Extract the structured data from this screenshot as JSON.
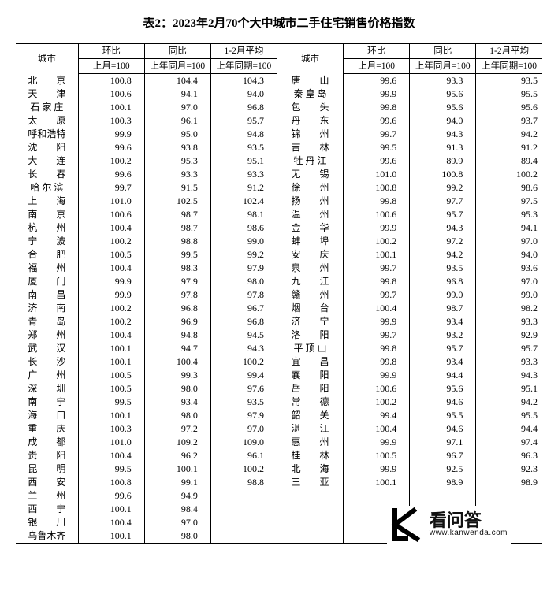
{
  "title": "表2：2023年2月70个大中城市二手住宅销售价格指数",
  "headers": {
    "city": "城市",
    "mom": "环比",
    "yoy": "同比",
    "avg": "1-2月平均",
    "mom_sub": "上月=100",
    "yoy_sub": "上年同月=100",
    "avg_sub": "上年同期=100"
  },
  "columns": {
    "widths_left": {
      "city": 64,
      "val": 68
    },
    "widths_right": {
      "city": 68,
      "val": 68
    }
  },
  "styling": {
    "background_color": "#ffffff",
    "text_color": "#000000",
    "border_color": "#000000",
    "title_fontsize": 15,
    "body_fontsize": 12,
    "font_family": "SimSun"
  },
  "left": [
    {
      "c": "北　　京",
      "v": [
        "100.8",
        "104.4",
        "104.3"
      ]
    },
    {
      "c": "天　　津",
      "v": [
        "100.6",
        "94.1",
        "94.0"
      ]
    },
    {
      "c": "石 家 庄",
      "v": [
        "100.1",
        "97.0",
        "96.8"
      ]
    },
    {
      "c": "太　　原",
      "v": [
        "100.3",
        "96.1",
        "95.7"
      ]
    },
    {
      "c": "呼和浩特",
      "v": [
        "99.9",
        "95.0",
        "94.8"
      ]
    },
    {
      "c": "沈　　阳",
      "v": [
        "99.6",
        "93.8",
        "93.5"
      ]
    },
    {
      "c": "大　　连",
      "v": [
        "100.2",
        "95.3",
        "95.1"
      ]
    },
    {
      "c": "长　　春",
      "v": [
        "99.6",
        "93.3",
        "93.3"
      ]
    },
    {
      "c": "哈 尔 滨",
      "v": [
        "99.7",
        "91.5",
        "91.2"
      ]
    },
    {
      "c": "上　　海",
      "v": [
        "101.0",
        "102.5",
        "102.4"
      ]
    },
    {
      "c": "南　　京",
      "v": [
        "100.6",
        "98.7",
        "98.1"
      ]
    },
    {
      "c": "杭　　州",
      "v": [
        "100.4",
        "98.7",
        "98.6"
      ]
    },
    {
      "c": "宁　　波",
      "v": [
        "100.2",
        "98.8",
        "99.0"
      ]
    },
    {
      "c": "合　　肥",
      "v": [
        "100.5",
        "99.5",
        "99.2"
      ]
    },
    {
      "c": "福　　州",
      "v": [
        "100.4",
        "98.3",
        "97.9"
      ]
    },
    {
      "c": "厦　　门",
      "v": [
        "99.9",
        "97.9",
        "98.0"
      ]
    },
    {
      "c": "南　　昌",
      "v": [
        "99.9",
        "97.8",
        "97.8"
      ]
    },
    {
      "c": "济　　南",
      "v": [
        "100.2",
        "96.8",
        "96.7"
      ]
    },
    {
      "c": "青　　岛",
      "v": [
        "100.2",
        "96.9",
        "96.8"
      ]
    },
    {
      "c": "郑　　州",
      "v": [
        "100.4",
        "94.8",
        "94.5"
      ]
    },
    {
      "c": "武　　汉",
      "v": [
        "100.1",
        "94.7",
        "94.3"
      ]
    },
    {
      "c": "长　　沙",
      "v": [
        "100.1",
        "100.4",
        "100.2"
      ]
    },
    {
      "c": "广　　州",
      "v": [
        "100.5",
        "99.3",
        "99.4"
      ]
    },
    {
      "c": "深　　圳",
      "v": [
        "100.5",
        "98.0",
        "97.6"
      ]
    },
    {
      "c": "南　　宁",
      "v": [
        "99.5",
        "93.4",
        "93.5"
      ]
    },
    {
      "c": "海　　口",
      "v": [
        "100.1",
        "98.0",
        "97.9"
      ]
    },
    {
      "c": "重　　庆",
      "v": [
        "100.3",
        "97.2",
        "97.0"
      ]
    },
    {
      "c": "成　　都",
      "v": [
        "101.0",
        "109.2",
        "109.0"
      ]
    },
    {
      "c": "贵　　阳",
      "v": [
        "100.4",
        "96.2",
        "96.1"
      ]
    },
    {
      "c": "昆　　明",
      "v": [
        "99.5",
        "100.1",
        "100.2"
      ]
    },
    {
      "c": "西　　安",
      "v": [
        "100.8",
        "99.1",
        "98.8"
      ]
    },
    {
      "c": "兰　　州",
      "v": [
        "99.6",
        "94.9",
        ""
      ]
    },
    {
      "c": "西　　宁",
      "v": [
        "100.1",
        "98.4",
        ""
      ]
    },
    {
      "c": "银　　川",
      "v": [
        "100.4",
        "97.0",
        ""
      ]
    },
    {
      "c": "乌鲁木齐",
      "v": [
        "100.1",
        "98.0",
        ""
      ]
    }
  ],
  "right": [
    {
      "c": "唐　　山",
      "v": [
        "99.6",
        "93.3",
        "93.5"
      ]
    },
    {
      "c": "秦 皇 岛",
      "v": [
        "99.9",
        "95.6",
        "95.5"
      ]
    },
    {
      "c": "包　　头",
      "v": [
        "99.8",
        "95.6",
        "95.6"
      ]
    },
    {
      "c": "丹　　东",
      "v": [
        "99.6",
        "94.0",
        "93.7"
      ]
    },
    {
      "c": "锦　　州",
      "v": [
        "99.7",
        "94.3",
        "94.2"
      ]
    },
    {
      "c": "吉　　林",
      "v": [
        "99.5",
        "91.3",
        "91.2"
      ]
    },
    {
      "c": "牡 丹 江",
      "v": [
        "99.6",
        "89.9",
        "89.4"
      ]
    },
    {
      "c": "无　　锡",
      "v": [
        "101.0",
        "100.8",
        "100.2"
      ]
    },
    {
      "c": "徐　　州",
      "v": [
        "100.8",
        "99.2",
        "98.6"
      ]
    },
    {
      "c": "扬　　州",
      "v": [
        "99.8",
        "97.7",
        "97.5"
      ]
    },
    {
      "c": "温　　州",
      "v": [
        "100.6",
        "95.7",
        "95.3"
      ]
    },
    {
      "c": "金　　华",
      "v": [
        "99.9",
        "94.3",
        "94.1"
      ]
    },
    {
      "c": "蚌　　埠",
      "v": [
        "100.2",
        "97.2",
        "97.0"
      ]
    },
    {
      "c": "安　　庆",
      "v": [
        "100.1",
        "94.2",
        "94.0"
      ]
    },
    {
      "c": "泉　　州",
      "v": [
        "99.7",
        "93.5",
        "93.6"
      ]
    },
    {
      "c": "九　　江",
      "v": [
        "99.8",
        "96.8",
        "97.0"
      ]
    },
    {
      "c": "赣　　州",
      "v": [
        "99.7",
        "99.0",
        "99.0"
      ]
    },
    {
      "c": "烟　　台",
      "v": [
        "100.4",
        "98.7",
        "98.2"
      ]
    },
    {
      "c": "济　　宁",
      "v": [
        "99.9",
        "93.4",
        "93.3"
      ]
    },
    {
      "c": "洛　　阳",
      "v": [
        "99.7",
        "93.2",
        "92.9"
      ]
    },
    {
      "c": "平 顶 山",
      "v": [
        "99.8",
        "95.7",
        "95.7"
      ]
    },
    {
      "c": "宜　　昌",
      "v": [
        "99.8",
        "93.4",
        "93.3"
      ]
    },
    {
      "c": "襄　　阳",
      "v": [
        "99.9",
        "94.4",
        "94.3"
      ]
    },
    {
      "c": "岳　　阳",
      "v": [
        "100.6",
        "95.6",
        "95.1"
      ]
    },
    {
      "c": "常　　德",
      "v": [
        "100.2",
        "94.6",
        "94.2"
      ]
    },
    {
      "c": "韶　　关",
      "v": [
        "99.4",
        "95.5",
        "95.5"
      ]
    },
    {
      "c": "湛　　江",
      "v": [
        "100.4",
        "94.6",
        "94.4"
      ]
    },
    {
      "c": "惠　　州",
      "v": [
        "99.9",
        "97.1",
        "97.4"
      ]
    },
    {
      "c": "桂　　林",
      "v": [
        "100.5",
        "96.7",
        "96.3"
      ]
    },
    {
      "c": "北　　海",
      "v": [
        "99.9",
        "92.5",
        "92.3"
      ]
    },
    {
      "c": "三　　亚",
      "v": [
        "100.1",
        "98.9",
        "98.9"
      ]
    }
  ],
  "watermark": {
    "name": "看问答",
    "url": "www.kanwenda.com"
  }
}
